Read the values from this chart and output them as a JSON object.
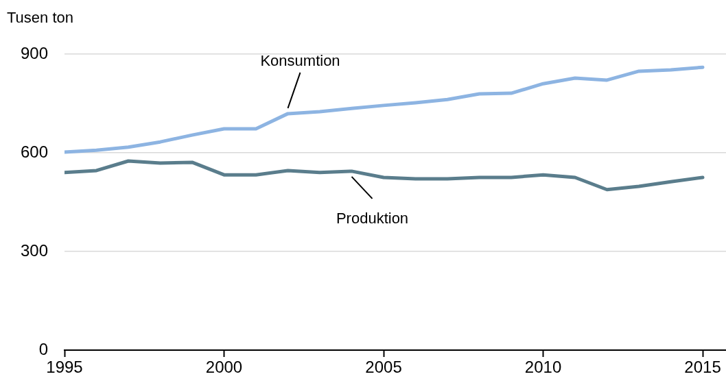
{
  "chart_data": {
    "type": "line",
    "ylabel": "Tusen ton",
    "x": [
      1995,
      1996,
      1997,
      1998,
      1999,
      2000,
      2001,
      2002,
      2003,
      2004,
      2005,
      2006,
      2007,
      2008,
      2009,
      2010,
      2011,
      2012,
      2013,
      2014,
      2015
    ],
    "series": [
      {
        "name": "Konsumtion",
        "color": "#8db4e2",
        "values": [
          602,
          608,
          617,
          633,
          654,
          673,
          673,
          719,
          725,
          735,
          744,
          752,
          762,
          779,
          781,
          810,
          827,
          821,
          848,
          852,
          860
        ]
      },
      {
        "name": "Produktion",
        "color": "#5a7d8c",
        "values": [
          540,
          546,
          575,
          569,
          571,
          533,
          533,
          546,
          540,
          544,
          525,
          521,
          521,
          525,
          525,
          533,
          525,
          488,
          498,
          512,
          525
        ]
      }
    ],
    "xlim": [
      1995,
      2015.73
    ],
    "xticks": [
      1995,
      2000,
      2005,
      2010,
      2015
    ],
    "ylim": [
      0,
      900
    ],
    "yticks": [
      0,
      300,
      600,
      900
    ],
    "grid": "y",
    "legend": false,
    "marker": "none",
    "line_style": "solid"
  }
}
